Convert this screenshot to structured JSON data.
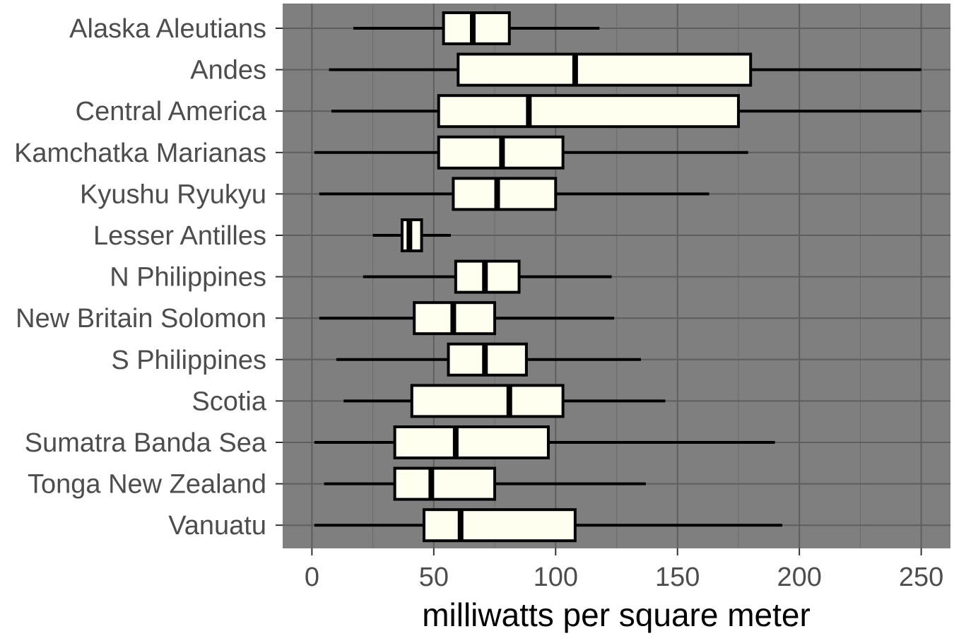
{
  "chart_data": {
    "type": "boxplot",
    "orientation": "horizontal",
    "title": "",
    "xlabel": "milliwatts per square meter",
    "ylabel": "",
    "xlim": [
      -12,
      262
    ],
    "xticks": [
      0,
      50,
      100,
      150,
      200,
      250
    ],
    "grid": true,
    "legend": "none",
    "colors": {
      "panel": "#7f7f7f",
      "grid_major": "#5e5e5e",
      "grid_minor": "#6e6e6e",
      "box_fill": "#ffffef",
      "box_stroke": "#000000"
    },
    "categories": [
      "Alaska Aleutians",
      "Andes",
      "Central America",
      "Kamchatka Marianas",
      "Kyushu Ryukyu",
      "Lesser Antilles",
      "N Philippines",
      "New Britain Solomon",
      "S Philippines",
      "Scotia",
      "Sumatra Banda Sea",
      "Tonga New Zealand",
      "Vanuatu"
    ],
    "boxes": [
      {
        "min": 17,
        "q1": 54,
        "median": 66,
        "q3": 81,
        "max": 118
      },
      {
        "min": 7,
        "q1": 60,
        "median": 108,
        "q3": 180,
        "max": 250
      },
      {
        "min": 8,
        "q1": 52,
        "median": 89,
        "q3": 175,
        "max": 250
      },
      {
        "min": 1,
        "q1": 52,
        "median": 78,
        "q3": 103,
        "max": 179
      },
      {
        "min": 3,
        "q1": 58,
        "median": 76,
        "q3": 100,
        "max": 163
      },
      {
        "min": 25,
        "q1": 37,
        "median": 40,
        "q3": 45,
        "max": 57
      },
      {
        "min": 21,
        "q1": 59,
        "median": 71,
        "q3": 85,
        "max": 123
      },
      {
        "min": 3,
        "q1": 42,
        "median": 58,
        "q3": 75,
        "max": 124
      },
      {
        "min": 10,
        "q1": 56,
        "median": 71,
        "q3": 88,
        "max": 135
      },
      {
        "min": 13,
        "q1": 41,
        "median": 81,
        "q3": 103,
        "max": 145
      },
      {
        "min": 1,
        "q1": 34,
        "median": 59,
        "q3": 97,
        "max": 190
      },
      {
        "min": 5,
        "q1": 34,
        "median": 49,
        "q3": 75,
        "max": 137
      },
      {
        "min": 1,
        "q1": 46,
        "median": 61,
        "q3": 108,
        "max": 193
      }
    ]
  }
}
